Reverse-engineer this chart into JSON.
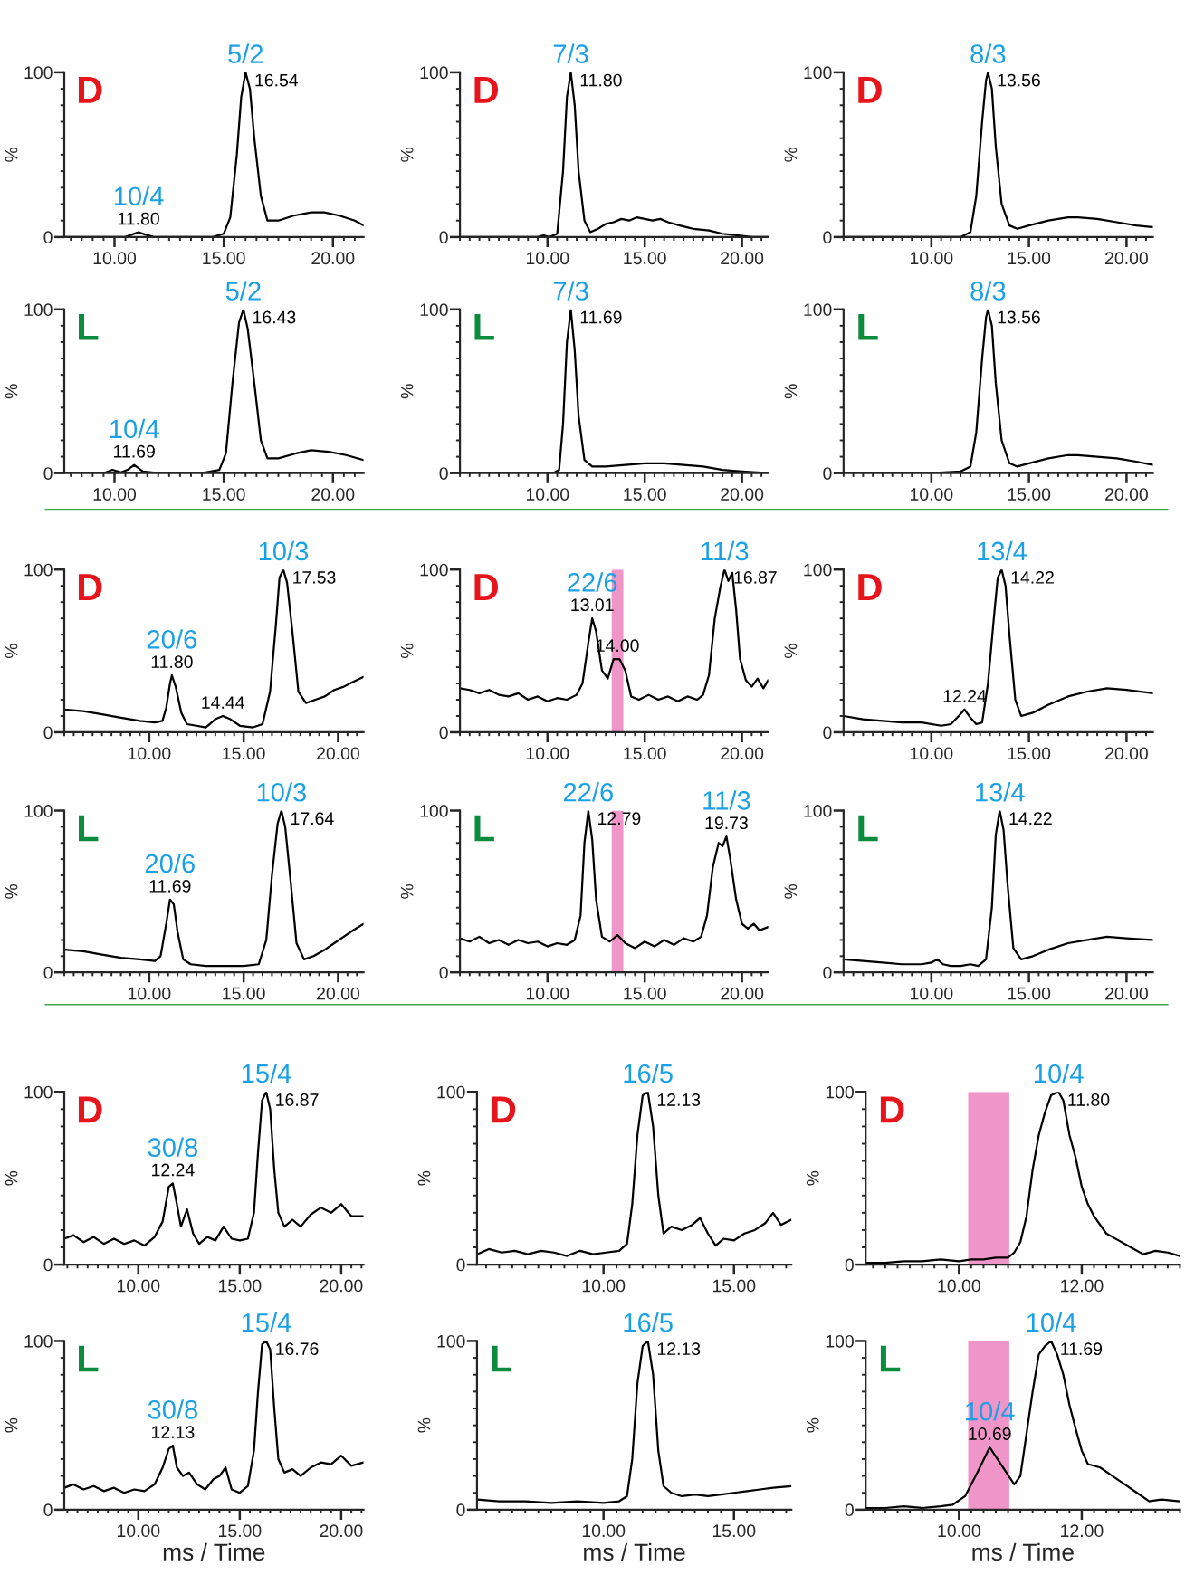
{
  "chart_data": [
    {
      "type": "line",
      "xlim": [
        7.7,
        21.4
      ],
      "xticks": [
        {
          "value": 10,
          "label": "10.00"
        },
        {
          "value": 15,
          "label": "15.00"
        },
        {
          "value": 20,
          "label": "20.00"
        }
      ],
      "ylim": [
        0,
        100
      ],
      "yticks": [
        0,
        100
      ],
      "ylabel": "%",
      "series": [
        {
          "color": "#000000",
          "x": [
            7.7,
            9,
            10.5,
            10.8,
            11.1,
            11.4,
            11.8,
            13,
            14.5,
            15.0,
            15.3,
            15.6,
            15.8,
            16.0,
            16.2,
            16.4,
            16.7,
            17.0,
            17.5,
            18.2,
            19.0,
            19.6,
            20.3,
            21.0,
            21.4
          ],
          "values": [
            0,
            0,
            0,
            1.5,
            3,
            1.5,
            0,
            0,
            0,
            2,
            12,
            50,
            85,
            100,
            90,
            60,
            25,
            10,
            10,
            13,
            15,
            15,
            13,
            10,
            7
          ]
        }
      ],
      "annotations": [
        "D",
        {
          "text": "5/2",
          "x": 16.0,
          "y": 100
        },
        {
          "text": "16.54",
          "x": 16.0,
          "y": 100
        },
        {
          "text": "10/4",
          "x": 11.1,
          "y": 3
        },
        {
          "text": "11.80",
          "x": 11.1,
          "y": 3
        }
      ]
    },
    {
      "type": "line",
      "xlim": [
        5.5,
        21.35
      ],
      "xticks": [
        {
          "value": 10,
          "label": "10.00"
        },
        {
          "value": 15,
          "label": "15.00"
        },
        {
          "value": 20,
          "label": "20.00"
        }
      ],
      "ylim": [
        0,
        100
      ],
      "yticks": [
        0,
        100
      ],
      "ylabel": "%",
      "series": [
        {
          "color": "#000000",
          "x": [
            5.5,
            8,
            9.5,
            9.8,
            10.1,
            10.5,
            10.8,
            11.0,
            11.2,
            11.4,
            11.6,
            11.9,
            12.2,
            12.6,
            13.0,
            13.4,
            13.8,
            14.2,
            14.6,
            15.0,
            15.4,
            15.8,
            16.2,
            16.8,
            17.5,
            18.3,
            19.0,
            19.8,
            20.5,
            21.35
          ],
          "values": [
            0,
            0,
            0,
            1,
            0,
            2,
            40,
            85,
            100,
            80,
            40,
            10,
            3,
            5,
            8,
            9,
            11,
            10,
            12,
            11,
            10,
            11,
            9,
            7,
            5,
            4,
            2,
            1,
            0,
            0
          ]
        }
      ],
      "annotations": [
        "D",
        {
          "text": "7/3",
          "x": 11.2,
          "y": 100
        },
        {
          "text": "11.80",
          "x": 11.2,
          "y": 100
        }
      ]
    },
    {
      "type": "line",
      "xlim": [
        5.5,
        21.35
      ],
      "xticks": [
        {
          "value": 10,
          "label": "10.00"
        },
        {
          "value": 15,
          "label": "15.00"
        },
        {
          "value": 20,
          "label": "20.00"
        }
      ],
      "ylim": [
        0,
        100
      ],
      "yticks": [
        0,
        100
      ],
      "ylabel": "%",
      "series": [
        {
          "color": "#000000",
          "x": [
            5.5,
            8,
            10,
            11.5,
            12.0,
            12.3,
            12.6,
            12.8,
            12.9,
            13.1,
            13.3,
            13.6,
            14.0,
            14.4,
            15,
            16,
            17,
            17.5,
            18.5,
            19.5,
            20.5,
            21.35
          ],
          "values": [
            0,
            0,
            0,
            0,
            3,
            25,
            70,
            95,
            100,
            90,
            55,
            20,
            7,
            5,
            7,
            10,
            12,
            12,
            11,
            9,
            7,
            6
          ]
        }
      ],
      "annotations": [
        "D",
        {
          "text": "8/3",
          "x": 12.9,
          "y": 100
        },
        {
          "text": "13.56",
          "x": 12.9,
          "y": 100
        }
      ]
    },
    {
      "type": "line",
      "xlim": [
        7.7,
        21.4
      ],
      "xticks": [
        {
          "value": 10,
          "label": "10.00"
        },
        {
          "value": 15,
          "label": "15.00"
        },
        {
          "value": 20,
          "label": "20.00"
        }
      ],
      "ylim": [
        0,
        100
      ],
      "yticks": [
        0,
        100
      ],
      "ylabel": "%",
      "series": [
        {
          "color": "#000000",
          "x": [
            7.7,
            9.5,
            9.9,
            10.3,
            10.6,
            10.9,
            11.3,
            12,
            14,
            14.8,
            15.1,
            15.4,
            15.7,
            15.9,
            16.1,
            16.4,
            16.7,
            17.0,
            17.5,
            18.3,
            19.0,
            19.8,
            20.6,
            21.4
          ],
          "values": [
            0,
            0,
            2,
            0.5,
            2,
            5,
            1,
            0,
            0,
            2,
            12,
            55,
            92,
            100,
            88,
            55,
            20,
            9,
            9,
            12,
            14,
            13,
            11,
            8
          ]
        }
      ],
      "annotations": [
        "L",
        {
          "text": "5/2",
          "x": 15.9,
          "y": 100
        },
        {
          "text": "16.43",
          "x": 15.9,
          "y": 100
        },
        {
          "text": "10/4",
          "x": 10.9,
          "y": 5
        },
        {
          "text": "11.69",
          "x": 10.9,
          "y": 5
        }
      ]
    },
    {
      "type": "line",
      "xlim": [
        5.5,
        21.35
      ],
      "xticks": [
        {
          "value": 10,
          "label": "10.00"
        },
        {
          "value": 15,
          "label": "15.00"
        },
        {
          "value": 20,
          "label": "20.00"
        }
      ],
      "ylim": [
        0,
        100
      ],
      "yticks": [
        0,
        100
      ],
      "ylabel": "%",
      "series": [
        {
          "color": "#000000",
          "x": [
            5.5,
            9,
            10.3,
            10.6,
            10.8,
            11.0,
            11.2,
            11.4,
            11.6,
            11.9,
            12.3,
            13,
            14,
            15,
            16,
            17,
            18,
            19,
            20,
            21.35
          ],
          "values": [
            0,
            0,
            0,
            2,
            30,
            80,
            100,
            75,
            35,
            8,
            4,
            4,
            5,
            6,
            6,
            5,
            4,
            2,
            1,
            0
          ]
        }
      ],
      "annotations": [
        "L",
        {
          "text": "7/3",
          "x": 11.2,
          "y": 100
        },
        {
          "text": "11.69",
          "x": 11.2,
          "y": 100
        }
      ]
    },
    {
      "type": "line",
      "xlim": [
        5.5,
        21.35
      ],
      "xticks": [
        {
          "value": 10,
          "label": "10.00"
        },
        {
          "value": 15,
          "label": "15.00"
        },
        {
          "value": 20,
          "label": "20.00"
        }
      ],
      "ylim": [
        0,
        100
      ],
      "yticks": [
        0,
        100
      ],
      "ylabel": "%",
      "series": [
        {
          "color": "#000000",
          "x": [
            5.5,
            8,
            10,
            11.5,
            12.0,
            12.3,
            12.6,
            12.8,
            12.9,
            13.1,
            13.3,
            13.6,
            14.0,
            14.4,
            15,
            16,
            17,
            17.5,
            18.5,
            19.5,
            20.5,
            21.35
          ],
          "values": [
            0,
            0,
            0,
            1,
            4,
            25,
            70,
            95,
            100,
            90,
            55,
            20,
            6,
            4,
            6,
            9,
            11,
            11,
            10,
            9,
            7,
            5
          ]
        }
      ],
      "annotations": [
        "L",
        {
          "text": "8/3",
          "x": 12.9,
          "y": 100
        },
        {
          "text": "13.56",
          "x": 12.9,
          "y": 100
        }
      ]
    },
    {
      "type": "line",
      "xlim": [
        5.5,
        21.35
      ],
      "xticks": [
        {
          "value": 10,
          "label": "10.00"
        },
        {
          "value": 15,
          "label": "15.00"
        },
        {
          "value": 20,
          "label": "20.00"
        }
      ],
      "ylim": [
        0,
        100
      ],
      "yticks": [
        0,
        100
      ],
      "ylabel": "%",
      "series": [
        {
          "color": "#000000",
          "x": [
            5.5,
            6.5,
            7.5,
            8.5,
            9.5,
            10.3,
            10.7,
            10.9,
            11.1,
            11.2,
            11.4,
            11.7,
            12.0,
            12.5,
            13.0,
            13.5,
            13.9,
            14.3,
            14.8,
            15.5,
            16.0,
            16.4,
            16.7,
            16.9,
            17.1,
            17.3,
            17.6,
            17.9,
            18.3,
            18.8,
            19.3,
            19.8,
            20.3,
            20.8,
            21.35
          ],
          "values": [
            14,
            13,
            11,
            9,
            7,
            6,
            7,
            15,
            30,
            35,
            28,
            12,
            5,
            4,
            3,
            8,
            10,
            8,
            4,
            3,
            5,
            25,
            65,
            95,
            100,
            92,
            60,
            25,
            18,
            20,
            22,
            26,
            28,
            31,
            34
          ]
        }
      ],
      "annotations": [
        "D",
        {
          "text": "10/3",
          "x": 17.1,
          "y": 100
        },
        {
          "text": "17.53",
          "x": 17.1,
          "y": 100
        },
        {
          "text": "20/6",
          "x": 11.2,
          "y": 35
        },
        {
          "text": "11.80",
          "x": 11.2,
          "y": 35
        },
        {
          "text": "14.44",
          "x": 13.9,
          "y": 10
        }
      ]
    },
    {
      "type": "line",
      "xlim": [
        5.5,
        21.35
      ],
      "xticks": [
        {
          "value": 10,
          "label": "10.00"
        },
        {
          "value": 15,
          "label": "15.00"
        },
        {
          "value": 20,
          "label": "20.00"
        }
      ],
      "ylim": [
        0,
        100
      ],
      "yticks": [
        0,
        100
      ],
      "ylabel": "%",
      "series": [
        {
          "color": "#000000",
          "x": [
            5.5,
            6.0,
            6.5,
            7.0,
            7.5,
            8.0,
            8.5,
            9.0,
            9.5,
            10.0,
            10.5,
            11.0,
            11.5,
            11.8,
            12.1,
            12.3,
            12.5,
            12.8,
            13.1,
            13.4,
            13.7,
            14.0,
            14.3,
            14.7,
            15.2,
            15.7,
            16.2,
            16.7,
            17.2,
            17.7,
            18.0,
            18.3,
            18.6,
            18.9,
            19.1,
            19.3,
            19.5,
            19.7,
            19.9,
            20.2,
            20.5,
            20.8,
            21.1,
            21.35
          ],
          "values": [
            27,
            26,
            24,
            26,
            23,
            22,
            24,
            20,
            22,
            19,
            21,
            20,
            23,
            30,
            55,
            70,
            62,
            38,
            33,
            45,
            45,
            38,
            22,
            20,
            23,
            20,
            22,
            19,
            22,
            20,
            23,
            35,
            70,
            90,
            100,
            93,
            98,
            75,
            45,
            32,
            28,
            33,
            27,
            32
          ]
        }
      ],
      "bands": [
        {
          "axis": "x",
          "from": 13.3,
          "to": 13.9,
          "color": "#f095c8"
        }
      ],
      "annotations": [
        "D",
        {
          "text": "11/3",
          "x": 19.1,
          "y": 100
        },
        {
          "text": "16.87",
          "x": 19.1,
          "y": 100
        },
        {
          "text": "22/6",
          "x": 12.3,
          "y": 70
        },
        {
          "text": "13.01",
          "x": 12.3,
          "y": 70
        },
        {
          "text": "14.00",
          "x": 13.6,
          "y": 45
        }
      ]
    },
    {
      "type": "line",
      "xlim": [
        5.5,
        21.35
      ],
      "xticks": [
        {
          "value": 10,
          "label": "10.00"
        },
        {
          "value": 15,
          "label": "15.00"
        },
        {
          "value": 20,
          "label": "20.00"
        }
      ],
      "ylim": [
        0,
        100
      ],
      "yticks": [
        0,
        100
      ],
      "ylabel": "%",
      "series": [
        {
          "color": "#000000",
          "x": [
            5.5,
            6.5,
            7.5,
            8.5,
            9.5,
            10.5,
            11.0,
            11.4,
            11.7,
            12.0,
            12.3,
            12.6,
            12.9,
            13.2,
            13.4,
            13.6,
            13.8,
            14.0,
            14.3,
            14.6,
            15.2,
            16,
            17,
            18,
            19,
            20,
            21.35
          ],
          "values": [
            10,
            8,
            7,
            6,
            6,
            4,
            5,
            10,
            14,
            9,
            5,
            6,
            30,
            70,
            95,
            100,
            90,
            60,
            20,
            10,
            12,
            17,
            22,
            25,
            27,
            26,
            24
          ]
        }
      ],
      "annotations": [
        "D",
        {
          "text": "13/4",
          "x": 13.6,
          "y": 100
        },
        {
          "text": "14.22",
          "x": 13.6,
          "y": 100
        },
        {
          "text": "12.24",
          "x": 11.7,
          "y": 14
        }
      ]
    },
    {
      "type": "line",
      "xlim": [
        5.5,
        21.35
      ],
      "xticks": [
        {
          "value": 10,
          "label": "10.00"
        },
        {
          "value": 15,
          "label": "15.00"
        },
        {
          "value": 20,
          "label": "20.00"
        }
      ],
      "ylim": [
        0,
        100
      ],
      "yticks": [
        0,
        100
      ],
      "ylabel": "%",
      "series": [
        {
          "color": "#000000",
          "x": [
            5.5,
            6.5,
            7.5,
            8.5,
            9.5,
            10.3,
            10.6,
            10.9,
            11.1,
            11.3,
            11.5,
            11.8,
            12.2,
            13,
            14,
            15,
            15.8,
            16.2,
            16.5,
            16.8,
            17.0,
            17.2,
            17.5,
            17.8,
            18.2,
            18.7,
            19.3,
            19.8,
            20.3,
            20.8,
            21.35
          ],
          "values": [
            14,
            13,
            11,
            9,
            8,
            7,
            10,
            30,
            45,
            42,
            25,
            8,
            5,
            4,
            4,
            4,
            5,
            20,
            60,
            92,
            100,
            90,
            55,
            18,
            8,
            10,
            14,
            18,
            22,
            26,
            30
          ]
        }
      ],
      "annotations": [
        "L",
        {
          "text": "10/3",
          "x": 17.0,
          "y": 100
        },
        {
          "text": "17.64",
          "x": 17.0,
          "y": 100
        },
        {
          "text": "20/6",
          "x": 11.1,
          "y": 45
        },
        {
          "text": "11.69",
          "x": 11.1,
          "y": 45
        }
      ]
    },
    {
      "type": "line",
      "xlim": [
        5.5,
        21.35
      ],
      "xticks": [
        {
          "value": 10,
          "label": "10.00"
        },
        {
          "value": 15,
          "label": "15.00"
        },
        {
          "value": 20,
          "label": "20.00"
        }
      ],
      "ylim": [
        0,
        100
      ],
      "yticks": [
        0,
        100
      ],
      "ylabel": "%",
      "series": [
        {
          "color": "#000000",
          "x": [
            5.5,
            6.0,
            6.5,
            7.0,
            7.5,
            8.0,
            8.5,
            9.0,
            9.5,
            10.0,
            10.5,
            11.0,
            11.4,
            11.7,
            11.9,
            12.1,
            12.3,
            12.5,
            12.8,
            13.2,
            13.6,
            14.0,
            14.5,
            15.0,
            15.5,
            16.0,
            16.5,
            17.0,
            17.5,
            17.9,
            18.2,
            18.5,
            18.8,
            19.0,
            19.2,
            19.4,
            19.7,
            20.0,
            20.3,
            20.6,
            20.9,
            21.35
          ],
          "values": [
            21,
            19,
            22,
            18,
            20,
            17,
            20,
            18,
            19,
            16,
            18,
            17,
            20,
            35,
            80,
            100,
            82,
            45,
            22,
            19,
            23,
            18,
            15,
            19,
            16,
            20,
            17,
            21,
            19,
            22,
            35,
            65,
            80,
            78,
            84,
            70,
            45,
            30,
            27,
            30,
            26,
            28
          ]
        }
      ],
      "bands": [
        {
          "axis": "x",
          "from": 13.3,
          "to": 13.9,
          "color": "#f095c8"
        }
      ],
      "annotations": [
        "L",
        {
          "text": "22/6",
          "x": 12.1,
          "y": 100
        },
        {
          "text": "12.79",
          "x": 12.1,
          "y": 100
        },
        {
          "text": "11/3",
          "x": 19.2,
          "y": 84
        },
        {
          "text": "19.73",
          "x": 19.2,
          "y": 84
        }
      ]
    },
    {
      "type": "line",
      "xlim": [
        5.5,
        21.35
      ],
      "xticks": [
        {
          "value": 10,
          "label": "10.00"
        },
        {
          "value": 15,
          "label": "15.00"
        },
        {
          "value": 20,
          "label": "20.00"
        }
      ],
      "ylim": [
        0,
        100
      ],
      "yticks": [
        0,
        100
      ],
      "ylabel": "%",
      "series": [
        {
          "color": "#000000",
          "x": [
            5.5,
            6.5,
            7.5,
            8.5,
            9.5,
            10.0,
            10.3,
            10.6,
            11.0,
            11.5,
            12.0,
            12.4,
            12.8,
            13.1,
            13.3,
            13.5,
            13.7,
            13.9,
            14.2,
            14.6,
            15.2,
            16,
            17,
            18,
            19,
            20,
            21.35
          ],
          "values": [
            8,
            7,
            6,
            5,
            5,
            6,
            8,
            5,
            4,
            4,
            5,
            4,
            8,
            40,
            85,
            100,
            88,
            55,
            15,
            8,
            10,
            14,
            18,
            20,
            22,
            21,
            20
          ]
        }
      ],
      "annotations": [
        "L",
        {
          "text": "13/4",
          "x": 13.5,
          "y": 100
        },
        {
          "text": "14.22",
          "x": 13.5,
          "y": 100
        }
      ]
    },
    {
      "type": "line",
      "xlim": [
        6.35,
        21.1
      ],
      "xticks": [
        {
          "value": 10,
          "label": "10.00"
        },
        {
          "value": 15,
          "label": "15.00"
        },
        {
          "value": 20,
          "label": "20.00"
        }
      ],
      "ylim": [
        0,
        100
      ],
      "yticks": [
        0,
        100
      ],
      "ylabel": "%",
      "series": [
        {
          "color": "#000000",
          "x": [
            6.35,
            6.8,
            7.3,
            7.8,
            8.3,
            8.8,
            9.3,
            9.8,
            10.3,
            10.8,
            11.2,
            11.5,
            11.7,
            11.9,
            12.1,
            12.4,
            12.7,
            13.0,
            13.4,
            13.8,
            14.2,
            14.6,
            15.0,
            15.4,
            15.7,
            15.9,
            16.1,
            16.3,
            16.5,
            16.7,
            16.9,
            17.2,
            17.6,
            18.0,
            18.5,
            19.0,
            19.5,
            20.0,
            20.5,
            21.1
          ],
          "values": [
            15,
            17,
            13,
            16,
            12,
            15,
            12,
            14,
            11,
            16,
            25,
            45,
            47,
            35,
            22,
            32,
            18,
            12,
            16,
            14,
            22,
            15,
            14,
            15,
            30,
            65,
            95,
            100,
            90,
            55,
            30,
            22,
            26,
            22,
            29,
            33,
            30,
            35,
            28,
            28
          ]
        }
      ],
      "annotations": [
        "D",
        {
          "text": "15/4",
          "x": 16.3,
          "y": 100
        },
        {
          "text": "16.87",
          "x": 16.3,
          "y": 100
        },
        {
          "text": "30/8",
          "x": 11.7,
          "y": 47
        },
        {
          "text": "12.24",
          "x": 11.7,
          "y": 47
        }
      ]
    },
    {
      "type": "line",
      "xlim": [
        5.15,
        17.2
      ],
      "xticks": [
        {
          "value": 10,
          "label": "10.00"
        },
        {
          "value": 15,
          "label": "15.00"
        }
      ],
      "ylim": [
        0,
        100
      ],
      "yticks": [
        0,
        100
      ],
      "ylabel": "%",
      "series": [
        {
          "color": "#000000",
          "x": [
            5.15,
            5.6,
            6.1,
            6.6,
            7.1,
            7.6,
            8.1,
            8.6,
            9.1,
            9.6,
            10.1,
            10.6,
            10.9,
            11.1,
            11.3,
            11.5,
            11.7,
            11.9,
            12.1,
            12.3,
            12.6,
            13.0,
            13.4,
            13.7,
            14.0,
            14.3,
            14.6,
            15.0,
            15.4,
            15.8,
            16.2,
            16.5,
            16.8,
            17.2
          ],
          "values": [
            6,
            9,
            7,
            8,
            6,
            8,
            7,
            5,
            8,
            6,
            7,
            8,
            12,
            35,
            75,
            98,
            100,
            80,
            40,
            18,
            22,
            20,
            23,
            27,
            18,
            11,
            15,
            14,
            18,
            20,
            24,
            30,
            23,
            26
          ]
        }
      ],
      "annotations": [
        "D",
        {
          "text": "16/5",
          "x": 11.7,
          "y": 100
        },
        {
          "text": "12.13",
          "x": 11.7,
          "y": 100
        }
      ]
    },
    {
      "type": "line",
      "xlim": [
        8.48,
        13.6
      ],
      "xticks": [
        {
          "value": 10,
          "label": "10.00"
        },
        {
          "value": 12,
          "label": "12.00"
        }
      ],
      "ylim": [
        0,
        100
      ],
      "yticks": [
        0,
        100
      ],
      "ylabel": "%",
      "series": [
        {
          "color": "#000000",
          "x": [
            8.5,
            8.8,
            9.1,
            9.4,
            9.7,
            10.0,
            10.2,
            10.4,
            10.6,
            10.8,
            10.9,
            11.0,
            11.1,
            11.2,
            11.3,
            11.4,
            11.5,
            11.62,
            11.7,
            11.8,
            11.9,
            12.0,
            12.1,
            12.2,
            12.4,
            12.6,
            12.8,
            13.0,
            13.2,
            13.4,
            13.6
          ],
          "values": [
            1,
            1,
            2,
            2,
            3,
            2,
            3,
            3,
            4,
            4,
            7,
            13,
            28,
            55,
            75,
            88,
            98,
            100,
            95,
            75,
            62,
            45,
            35,
            28,
            18,
            14,
            10,
            6,
            8,
            7,
            5
          ]
        }
      ],
      "bands": [
        {
          "axis": "x",
          "from": 10.15,
          "to": 10.82,
          "color": "#f095c8"
        }
      ],
      "annotations": [
        "D",
        {
          "text": "10/4",
          "x": 11.62,
          "y": 100
        },
        {
          "text": "11.80",
          "x": 11.62,
          "y": 100
        }
      ]
    },
    {
      "type": "line",
      "xlim": [
        6.35,
        21.1
      ],
      "xticks": [
        {
          "value": 10,
          "label": "10.00"
        },
        {
          "value": 15,
          "label": "15.00"
        },
        {
          "value": 20,
          "label": "20.00"
        }
      ],
      "ylim": [
        0,
        100
      ],
      "yticks": [
        0,
        100
      ],
      "ylabel": "%",
      "xlabel": "ms / Time",
      "series": [
        {
          "color": "#000000",
          "x": [
            6.35,
            6.8,
            7.3,
            7.8,
            8.3,
            8.8,
            9.3,
            9.8,
            10.3,
            10.8,
            11.2,
            11.5,
            11.7,
            11.9,
            12.2,
            12.5,
            12.9,
            13.3,
            13.7,
            14.0,
            14.3,
            14.6,
            15.0,
            15.4,
            15.7,
            15.9,
            16.1,
            16.3,
            16.5,
            16.7,
            16.9,
            17.2,
            17.6,
            18.0,
            18.5,
            19.0,
            19.5,
            20.0,
            20.5,
            21.1
          ],
          "values": [
            13,
            15,
            12,
            14,
            11,
            13,
            10,
            12,
            11,
            15,
            25,
            36,
            38,
            25,
            20,
            22,
            15,
            12,
            18,
            20,
            25,
            12,
            10,
            14,
            35,
            70,
            98,
            100,
            95,
            60,
            30,
            22,
            24,
            20,
            25,
            28,
            27,
            32,
            26,
            28
          ]
        }
      ],
      "annotations": [
        "L",
        {
          "text": "15/4",
          "x": 16.3,
          "y": 100
        },
        {
          "text": "16.76",
          "x": 16.3,
          "y": 100
        },
        {
          "text": "30/8",
          "x": 11.7,
          "y": 38
        },
        {
          "text": "12.13",
          "x": 11.7,
          "y": 38
        }
      ]
    },
    {
      "type": "line",
      "xlim": [
        5.15,
        17.2
      ],
      "xticks": [
        {
          "value": 10,
          "label": "10.00"
        },
        {
          "value": 15,
          "label": "15.00"
        }
      ],
      "ylim": [
        0,
        100
      ],
      "yticks": [
        0,
        100
      ],
      "ylabel": "%",
      "xlabel": "ms / Time",
      "series": [
        {
          "color": "#000000",
          "x": [
            5.15,
            6,
            7,
            8,
            9,
            10,
            10.6,
            10.9,
            11.1,
            11.3,
            11.5,
            11.7,
            11.9,
            12.1,
            12.3,
            12.6,
            13,
            13.5,
            14,
            14.5,
            15,
            15.5,
            16,
            16.5,
            17.2
          ],
          "values": [
            6,
            5,
            5,
            4,
            5,
            4,
            5,
            8,
            30,
            75,
            97,
            100,
            80,
            35,
            14,
            10,
            8,
            9,
            8,
            9,
            10,
            11,
            12,
            13,
            14
          ]
        }
      ],
      "annotations": [
        "L",
        {
          "text": "16/5",
          "x": 11.7,
          "y": 100
        },
        {
          "text": "12.13",
          "x": 11.7,
          "y": 100
        }
      ]
    },
    {
      "type": "line",
      "xlim": [
        8.48,
        13.6
      ],
      "xticks": [
        {
          "value": 10,
          "label": "10.00"
        },
        {
          "value": 12,
          "label": "12.00"
        }
      ],
      "ylim": [
        0,
        100
      ],
      "yticks": [
        0,
        100
      ],
      "ylabel": "%",
      "xlabel": "ms / Time",
      "series": [
        {
          "color": "#000000",
          "x": [
            8.5,
            8.8,
            9.1,
            9.4,
            9.7,
            9.9,
            10.1,
            10.3,
            10.5,
            10.7,
            10.9,
            11.0,
            11.1,
            11.2,
            11.3,
            11.4,
            11.5,
            11.6,
            11.7,
            11.8,
            11.9,
            12.0,
            12.1,
            12.3,
            12.5,
            12.7,
            12.9,
            13.1,
            13.3,
            13.6
          ],
          "values": [
            1,
            1,
            2,
            1,
            2,
            3,
            8,
            22,
            37,
            26,
            15,
            20,
            45,
            70,
            92,
            97,
            100,
            92,
            80,
            62,
            48,
            35,
            27,
            25,
            20,
            15,
            10,
            5,
            6,
            5
          ]
        }
      ],
      "bands": [
        {
          "axis": "x",
          "from": 10.15,
          "to": 10.82,
          "color": "#f095c8"
        }
      ],
      "annotations": [
        "L",
        {
          "text": "10/4",
          "x": 11.5,
          "y": 100
        },
        {
          "text": "11.69",
          "x": 11.5,
          "y": 100
        },
        {
          "text": "10/4",
          "x": 10.5,
          "y": 37
        },
        {
          "text": "10.69",
          "x": 10.5,
          "y": 37
        }
      ]
    }
  ]
}
